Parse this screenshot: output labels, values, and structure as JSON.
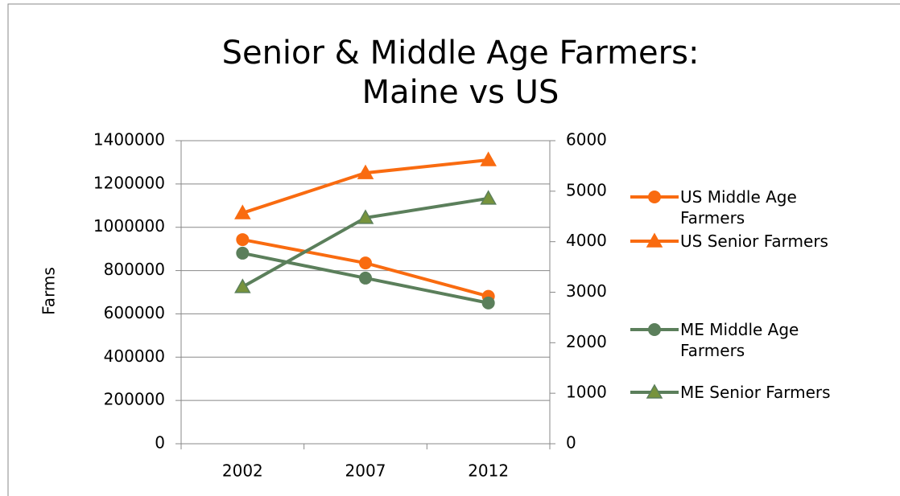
{
  "chart_data": {
    "type": "line",
    "title": "Senior & Middle Age Farmers: Maine vs US",
    "y_label": "Farms",
    "categories": [
      "2002",
      "2007",
      "2012"
    ],
    "series": [
      {
        "name": "US Middle Age Farmers",
        "color": "#f96b10",
        "marker": "circle",
        "values": [
          943000,
          835000,
          681000
        ]
      },
      {
        "name": "US Senior Farmers",
        "color": "#f96b10",
        "marker": "triangle",
        "values": [
          1066000,
          1251000,
          1311000
        ]
      },
      {
        "name": "ME Middle Age Farmers",
        "color": "#5b7f5b",
        "marker": "circle",
        "axis": "y2",
        "values": [
          3773,
          3280,
          2787
        ]
      },
      {
        "name": "ME Senior Farmers",
        "color": "#5b7f5b",
        "marker": "triangle",
        "axis": "y2",
        "values": [
          3105,
          4474,
          4857
        ]
      }
    ],
    "ylim": [
      0,
      1400000
    ],
    "yticks": [
      0,
      200000,
      400000,
      600000,
      800000,
      1000000,
      1200000,
      1400000
    ],
    "y2lim": [
      0,
      6000
    ],
    "y2ticks": [
      0,
      1000,
      2000,
      3000,
      4000,
      5000,
      6000
    ],
    "grid": true,
    "legend": "right"
  }
}
